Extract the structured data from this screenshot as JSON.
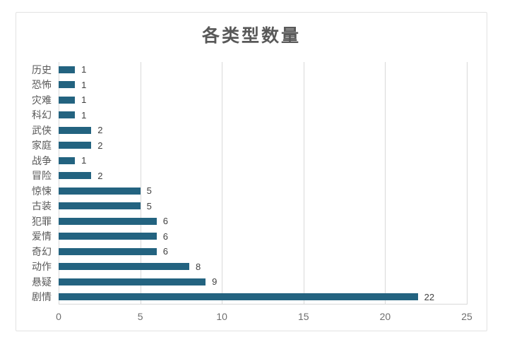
{
  "chart_data": {
    "type": "bar",
    "orientation": "horizontal",
    "title": "各类型数量",
    "categories": [
      "历史",
      "恐怖",
      "灾难",
      "科幻",
      "武侠",
      "家庭",
      "战争",
      "冒险",
      "惊悚",
      "古装",
      "犯罪",
      "爱情",
      "奇幻",
      "动作",
      "悬疑",
      "剧情"
    ],
    "values": [
      1,
      1,
      1,
      1,
      2,
      2,
      1,
      2,
      5,
      5,
      6,
      6,
      6,
      8,
      9,
      22
    ],
    "xlabel": "",
    "ylabel": "",
    "xlim": [
      0,
      25
    ],
    "x_ticks": [
      "0",
      "5",
      "10",
      "15",
      "20",
      "25"
    ],
    "grid": "vertical",
    "legend": "none",
    "bar_color": "#236380",
    "title_color": "#595959",
    "label_color": "#595959",
    "value_label_color": "#404040",
    "gridline_color": "#d9d9d9",
    "data_labels": [
      "1",
      "1",
      "1",
      "1",
      "2",
      "2",
      "1",
      "2",
      "5",
      "5",
      "6",
      "6",
      "6",
      "8",
      "9",
      "22"
    ]
  }
}
